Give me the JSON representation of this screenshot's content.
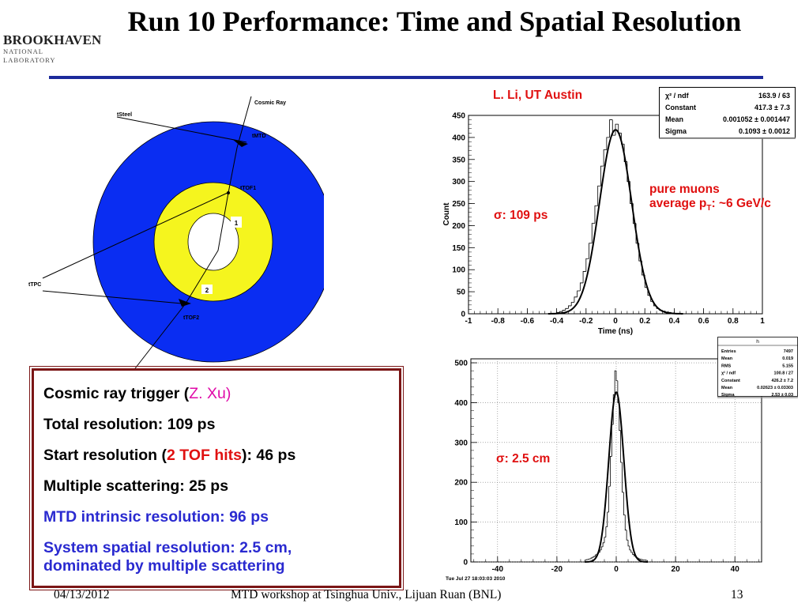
{
  "header": {
    "title": "Run 10 Performance: Time and Spatial Resolution",
    "logo_word": "BROOKHAVEN",
    "logo_sub": "NATIONAL LABORATORY"
  },
  "diagram": {
    "label_cosmic_ray": "Cosmic Ray",
    "label_tsteel": "tSteel",
    "label_tmtd": "tMTD",
    "label_ttof1": "tTOF1",
    "label_ttpc": "tTPC",
    "label_ttof2": "tTOF2",
    "label_1": "1",
    "label_2": "2",
    "colors": {
      "blue": "#0a2df2",
      "yellow": "#f5f51e"
    }
  },
  "text_box": {
    "line1_prefix": "Cosmic ray trigger (",
    "line1_author": "Z. Xu",
    "line1_suffix": ")",
    "line2": "Total resolution: 109 ps",
    "line3_prefix": "Start resolution (",
    "line3_highlight": "2 TOF hits",
    "line3_suffix": "): 46 ps",
    "line4": "Multiple scattering: 25 ps",
    "line5": "MTD intrinsic resolution: 96 ps",
    "line6a": "System spatial resolution: 2.5 cm,",
    "line6b": "dominated by multiple scattering"
  },
  "annotations": {
    "author": "L. Li, UT Austin",
    "sigma_time": "σ: 109 ps",
    "muons_line1": "pure muons",
    "muons_line2_prefix": "average p",
    "muons_line2_sub": "T",
    "muons_line2_suffix": ": ~6 GeV/c",
    "sigma_space": "σ: 2.5 cm",
    "timestamp": "Tue Jul 27 18:03:03 2010"
  },
  "footer": {
    "date": "04/13/2012",
    "center": "MTD workshop at Tsinghua Univ., Lijuan Ruan (BNL)",
    "page": "13"
  },
  "chart_data": [
    {
      "type": "histogram",
      "xlabel": "Time (ns)",
      "ylabel": "Count",
      "xlim": [
        -1,
        1
      ],
      "ylim": [
        0,
        450
      ],
      "x_ticks": [
        -1,
        -0.8,
        -0.6,
        -0.4,
        -0.2,
        0,
        0.2,
        0.4,
        0.6,
        0.8,
        1
      ],
      "y_ticks": [
        0,
        50,
        100,
        150,
        200,
        250,
        300,
        350,
        400,
        450
      ],
      "x_tick_labels": [
        "-1",
        "-0.8",
        "-0.6",
        "-0.4",
        "-0.2",
        "0",
        "0.2",
        "0.4",
        "0.6",
        "0.8",
        "1"
      ],
      "y_tick_labels": [
        "0",
        "50",
        "100",
        "150",
        "200",
        "250",
        "300",
        "350",
        "400",
        "450"
      ],
      "bin_width": 0.02,
      "bin_centers": [
        -0.39,
        -0.37,
        -0.35,
        -0.33,
        -0.31,
        -0.29,
        -0.27,
        -0.25,
        -0.23,
        -0.21,
        -0.19,
        -0.17,
        -0.15,
        -0.13,
        -0.11,
        -0.09,
        -0.07,
        -0.05,
        -0.03,
        -0.01,
        0.01,
        0.03,
        0.05,
        0.07,
        0.09,
        0.11,
        0.13,
        0.15,
        0.17,
        0.19,
        0.21,
        0.23,
        0.25,
        0.27,
        0.29,
        0.31,
        0.33,
        0.35,
        0.37,
        0.39
      ],
      "counts": [
        3,
        5,
        8,
        12,
        18,
        26,
        38,
        52,
        70,
        96,
        125,
        160,
        205,
        245,
        290,
        335,
        372,
        400,
        440,
        405,
        430,
        410,
        385,
        345,
        300,
        250,
        205,
        160,
        120,
        88,
        60,
        42,
        28,
        18,
        12,
        8,
        6,
        4,
        3,
        2
      ],
      "fit": {
        "name": "gaussian",
        "constant": 417.3,
        "mean": 0.001052,
        "sigma": 0.1093
      },
      "stats_box": {
        "rows": [
          [
            "χ² / ndf",
            "163.9 / 63"
          ],
          [
            "Constant",
            "417.3 ± 7.3"
          ],
          [
            "Mean",
            "0.001052 ± 0.001447"
          ],
          [
            "Sigma",
            "0.1093 ± 0.0012"
          ]
        ]
      }
    },
    {
      "type": "histogram",
      "xlabel": "",
      "ylabel": "",
      "xlim": [
        -49,
        49
      ],
      "ylim": [
        0,
        510
      ],
      "x_ticks": [
        -40,
        -20,
        0,
        20,
        40
      ],
      "y_ticks": [
        0,
        100,
        200,
        300,
        400,
        500
      ],
      "x_tick_labels": [
        "-40",
        "-20",
        "0",
        "20",
        "40"
      ],
      "y_tick_labels": [
        "0",
        "100",
        "200",
        "300",
        "400",
        "500"
      ],
      "bin_width": 0.5,
      "bin_centers": [
        -10.25,
        -9.75,
        -9.25,
        -8.75,
        -8.25,
        -7.75,
        -7.25,
        -6.75,
        -6.25,
        -5.75,
        -5.25,
        -4.75,
        -4.25,
        -3.75,
        -3.25,
        -2.75,
        -2.25,
        -1.75,
        -1.25,
        -0.75,
        -0.25,
        0.25,
        0.75,
        1.25,
        1.75,
        2.25,
        2.75,
        3.25,
        3.75,
        4.25,
        4.75,
        5.25,
        5.75,
        6.25,
        6.75,
        7.25,
        7.75,
        8.25,
        8.75,
        9.25,
        9.75,
        10.25
      ],
      "counts": [
        5,
        6,
        7,
        8,
        10,
        12,
        14,
        18,
        20,
        24,
        30,
        38,
        48,
        62,
        88,
        125,
        190,
        265,
        345,
        420,
        480,
        455,
        400,
        330,
        250,
        175,
        118,
        80,
        55,
        40,
        30,
        24,
        19,
        15,
        12,
        10,
        8,
        7,
        6,
        5,
        5,
        4
      ],
      "fit": {
        "name": "gaussian",
        "constant": 426.2,
        "mean": 0.02623,
        "sigma": 2.53
      },
      "stats_box": {
        "title": "h",
        "rows": [
          [
            "Entries",
            "7497"
          ],
          [
            "Mean",
            "0.019"
          ],
          [
            "RMS",
            "5.155"
          ],
          [
            "χ² / ndf",
            "100.8 / 27"
          ],
          [
            "Constant",
            "426.2 ± 7.2"
          ],
          [
            "Mean",
            "0.02623 ± 0.03303"
          ],
          [
            "Sigma",
            "2.53 ± 0.03"
          ]
        ]
      }
    }
  ]
}
